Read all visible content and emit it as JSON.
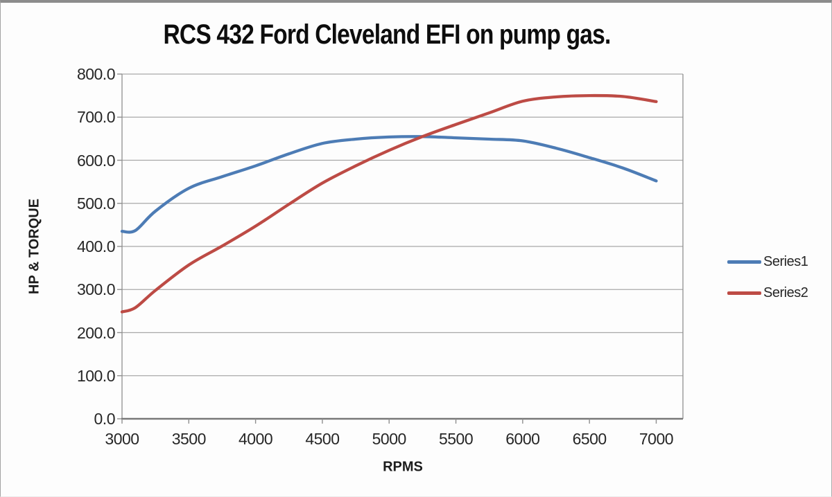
{
  "header": {
    "title": "RCS 432 Ford Cleveland EFI on pump gas."
  },
  "chart_data": {
    "type": "line",
    "title": "RCS 432 Ford Cleveland EFI on pump gas.",
    "xlabel": "RPMS",
    "ylabel": "HP & TORQUE",
    "xlim": [
      3000,
      7200
    ],
    "ylim": [
      0,
      800
    ],
    "x_ticks": [
      3000,
      3500,
      4000,
      4500,
      5000,
      5500,
      6000,
      6500,
      7000
    ],
    "y_ticks": [
      0,
      100,
      200,
      300,
      400,
      500,
      600,
      700,
      800
    ],
    "y_tick_labels": [
      "0.0",
      "100.0",
      "200.0",
      "300.0",
      "400.0",
      "500.0",
      "600.0",
      "700.0",
      "800.0"
    ],
    "grid": "horizontal-only",
    "legend_position": "right",
    "x": [
      3000,
      3100,
      3250,
      3500,
      3750,
      4000,
      4250,
      4500,
      4750,
      5000,
      5250,
      5500,
      5750,
      6000,
      6250,
      6500,
      6750,
      7000
    ],
    "series": [
      {
        "name": "Series1",
        "color": "#4d7cb5",
        "values": [
          435,
          437,
          482,
          535,
          562,
          587,
          615,
          639,
          649,
          654,
          655,
          652,
          649,
          645,
          628,
          606,
          582,
          552
        ]
      },
      {
        "name": "Series2",
        "color": "#bd4b45",
        "values": [
          248,
          258,
          298,
          357,
          401,
          447,
          498,
          547,
          587,
          623,
          655,
          683,
          710,
          737,
          747,
          750,
          748,
          736
        ]
      }
    ],
    "annotations": {
      "crossover_rpm": 5250,
      "crossover_value": 655
    }
  },
  "styles": {
    "grid_color": "#a8a8a8",
    "frame_color": "#8f8f8f",
    "axis_line_color": "#787878",
    "tick_text_color": "#262626",
    "title_color": "#0d0d0d",
    "background": "#fdfdfd"
  }
}
